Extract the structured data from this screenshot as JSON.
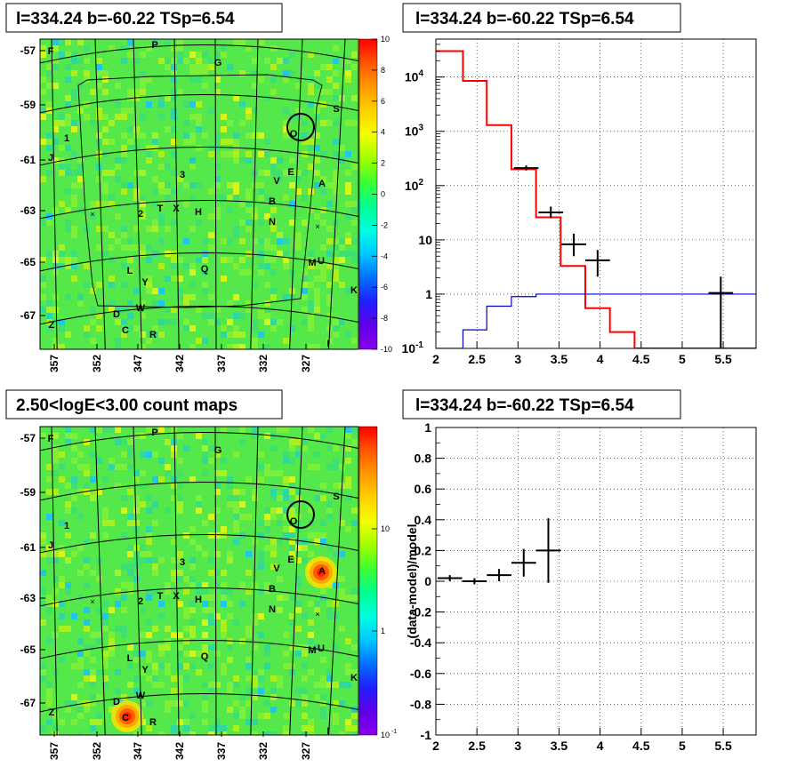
{
  "panels": {
    "map_residual": {
      "title": "l=334.24 b=-60.22 TSp=6.54"
    },
    "spectrum": {
      "title": "l=334.24 b=-60.22 TSp=6.54"
    },
    "map_counts": {
      "title": "2.50<logE<3.00 count maps"
    },
    "residual": {
      "title": "l=334.24 b=-60.22 TSp=6.54"
    }
  },
  "sky_map": {
    "lon_ticks": [
      "357",
      "352",
      "347",
      "342",
      "337",
      "332",
      "327"
    ],
    "lat_ticks": [
      "-57",
      "-59",
      "-61",
      "-63",
      "-65",
      "-67"
    ],
    "sources": [
      {
        "label": "F"
      },
      {
        "label": "P"
      },
      {
        "label": "G"
      },
      {
        "label": "S"
      },
      {
        "label": "O"
      },
      {
        "label": "1"
      },
      {
        "label": "J"
      },
      {
        "label": "3"
      },
      {
        "label": "V"
      },
      {
        "label": "E"
      },
      {
        "label": "A"
      },
      {
        "label": "2"
      },
      {
        "label": "T"
      },
      {
        "label": "X"
      },
      {
        "label": "H"
      },
      {
        "label": "B"
      },
      {
        "label": "N"
      },
      {
        "label": "L"
      },
      {
        "label": "Q"
      },
      {
        "label": "M"
      },
      {
        "label": "U"
      },
      {
        "label": "Y"
      },
      {
        "label": "K"
      },
      {
        "label": "D"
      },
      {
        "label": "W"
      },
      {
        "label": "C"
      },
      {
        "label": "R"
      },
      {
        "label": "Z"
      },
      {
        "label": "I"
      }
    ],
    "colors": {
      "background": "#3ee84a",
      "grid": "#000000",
      "hotspot": "#ff2a00"
    }
  },
  "colorbar_residual": {
    "ticks": [
      "10",
      "8",
      "6",
      "4",
      "2",
      "0",
      "-2",
      "-4",
      "-6",
      "-8",
      "-10"
    ],
    "stops": [
      "#ff0000",
      "#ff5500",
      "#ff9900",
      "#ffd000",
      "#f3ff00",
      "#a0ff00",
      "#3cff30",
      "#00ff90",
      "#00ffe0",
      "#00c8ff",
      "#0070ff",
      "#2020ff",
      "#6000e8",
      "#8800ee"
    ]
  },
  "colorbar_counts": {
    "ticks": [
      "10",
      "1",
      "10",
      "-1"
    ],
    "stops": [
      "#ff0000",
      "#ff5500",
      "#ff9900",
      "#ffd000",
      "#f3ff00",
      "#a0ff00",
      "#3cff30",
      "#00ff90",
      "#00ffe0",
      "#00c8ff",
      "#0070ff",
      "#2020ff",
      "#6000e8",
      "#8800ee"
    ]
  },
  "chart_data": [
    {
      "type": "line",
      "panel": "spectrum",
      "title": "l=334.24 b=-60.22 TSp=6.54",
      "xlabel": "",
      "ylabel": "",
      "xlim": [
        2,
        5.9
      ],
      "ylim": [
        0.1,
        50000
      ],
      "yscale": "log",
      "x_ticks": [
        "2",
        "2.5",
        "3",
        "3.5",
        "4",
        "4.5",
        "5",
        "5.5"
      ],
      "y_ticks": [
        "10^-1",
        "1",
        "10",
        "10^2",
        "10^3",
        "10^4"
      ],
      "grid": true,
      "series": [
        {
          "color": "#ff0000",
          "style": "step",
          "bin_edges": [
            2.0,
            2.33,
            2.62,
            2.92,
            3.22,
            3.52,
            3.82,
            4.12,
            4.42,
            5.9
          ],
          "values": [
            30000,
            8500,
            1300,
            200,
            26,
            3.3,
            0.55,
            0.2,
            0.1
          ]
        },
        {
          "color": "#0000cc",
          "style": "step",
          "bin_edges": [
            2.0,
            2.33,
            2.62,
            2.92,
            3.22,
            5.9
          ],
          "values": [
            0.1,
            0.22,
            0.6,
            0.9,
            1.0
          ]
        },
        {
          "color": "#000000",
          "style": "errorbars",
          "points": [
            {
              "x": 3.1,
              "y": 210,
              "xerr": 0.15,
              "ylo": 190,
              "yhi": 235
            },
            {
              "x": 3.4,
              "y": 32,
              "xerr": 0.15,
              "ylo": 25,
              "yhi": 41
            },
            {
              "x": 3.68,
              "y": 8.3,
              "xerr": 0.15,
              "ylo": 5,
              "yhi": 13
            },
            {
              "x": 3.97,
              "y": 4.2,
              "xerr": 0.15,
              "ylo": 2.1,
              "yhi": 6.5
            },
            {
              "x": 5.47,
              "y": 1.05,
              "xerr": 0.15,
              "ylo": 0.1,
              "yhi": 2.1
            }
          ]
        }
      ]
    },
    {
      "type": "scatter",
      "panel": "residual",
      "title": "l=334.24 b=-60.22 TSp=6.54",
      "xlabel": "",
      "ylabel": "(data-model)/model",
      "xlim": [
        2,
        5.9
      ],
      "ylim": [
        -1,
        1
      ],
      "x_ticks": [
        "2",
        "2.5",
        "3",
        "3.5",
        "4",
        "4.5",
        "5",
        "5.5"
      ],
      "y_ticks": [
        "-1",
        "-0.8",
        "-0.6",
        "-0.4",
        "-0.2",
        "0",
        "0.2",
        "0.4",
        "0.6",
        "0.8",
        "1"
      ],
      "grid": true,
      "series": [
        {
          "color": "#000000",
          "style": "errorbars",
          "points": [
            {
              "x": 2.17,
              "y": 0.02,
              "xerr": 0.15,
              "ylo": 0.0,
              "yhi": 0.04
            },
            {
              "x": 2.47,
              "y": 0.0,
              "xerr": 0.15,
              "ylo": -0.02,
              "yhi": 0.02
            },
            {
              "x": 2.77,
              "y": 0.04,
              "xerr": 0.15,
              "ylo": 0.0,
              "yhi": 0.08
            },
            {
              "x": 3.07,
              "y": 0.12,
              "xerr": 0.15,
              "ylo": 0.03,
              "yhi": 0.21
            },
            {
              "x": 3.37,
              "y": 0.2,
              "xerr": 0.15,
              "ylo": -0.01,
              "yhi": 0.41
            }
          ]
        }
      ]
    }
  ]
}
